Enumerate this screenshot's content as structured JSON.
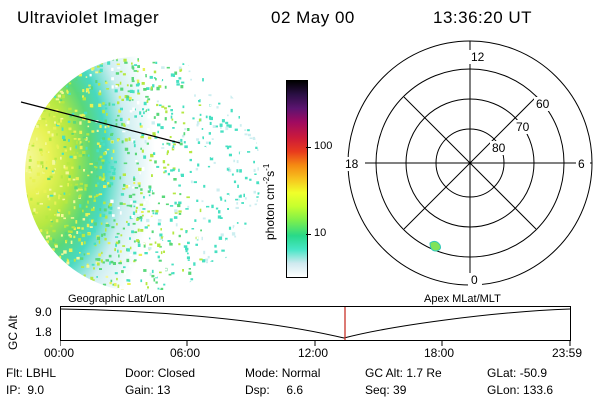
{
  "header": {
    "title": "Ultraviolet Imager",
    "date": "02 May 00",
    "time": "13:36:20 UT"
  },
  "colorbar": {
    "label": "photon cm",
    "label_exp1": "-2",
    "label_mid": "s",
    "label_exp2": "-1",
    "tick_100": "100",
    "tick_10": "10",
    "stops": [
      "#ffffff",
      "#cfe9ef",
      "#47e6c6",
      "#28d98a",
      "#7ff04a",
      "#c6ff2e",
      "#f0ff2a",
      "#f7c31e",
      "#f58a12",
      "#e83b1d",
      "#cc1a3a",
      "#a00a60",
      "#5c1470",
      "#2b0f45",
      "#000000"
    ]
  },
  "polar_plot": {
    "labels": {
      "top": "12",
      "bottom": "0",
      "left": "18",
      "right": "6"
    },
    "lat_labels": [
      "60",
      "70",
      "80"
    ]
  },
  "timeline": {
    "y_axis_label": "GC Alt",
    "y_ticks": [
      "9.0",
      "1.8"
    ],
    "left_label": "Geographic Lat/Lon",
    "right_label": "Apex MLat/MLT",
    "x_ticks": [
      "00:00",
      "06:00",
      "12:00",
      "18:00",
      "23:59"
    ],
    "marker_color": "#c8322a"
  },
  "info": {
    "flt_label": "Flt:",
    "flt_value": "LBHL",
    "ip_label": "IP:",
    "ip_value": "9.0",
    "door_label": "Door:",
    "door_value": "Closed",
    "gain_label": "Gain:",
    "gain_value": "13",
    "mode_label": "Mode:",
    "mode_value": "Normal",
    "dsp_label": "Dsp:",
    "dsp_value": "6.6",
    "gcalt_label": "GC Alt:",
    "gcalt_value": "1.7 Re",
    "seq_label": "Seq:",
    "seq_value": "39",
    "glat_label": "GLat:",
    "glat_value": "-50.9",
    "glon_label": "GLon:",
    "glon_value": "133.6"
  }
}
